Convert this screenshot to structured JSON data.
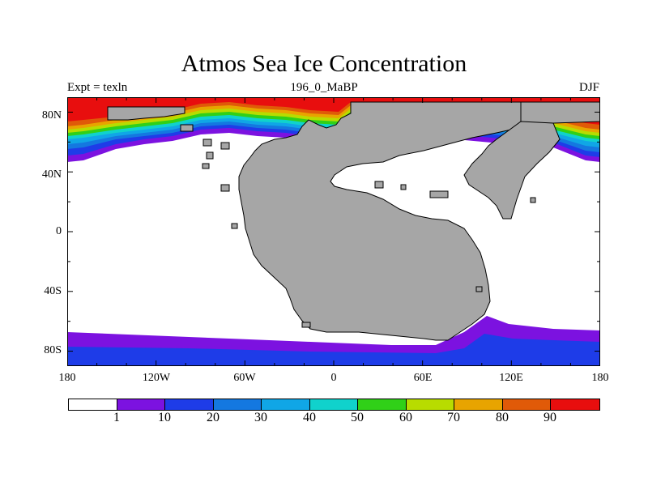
{
  "title": "Atmos Sea Ice Concentration",
  "subtitle_left": "Expt = texln",
  "subtitle_center": "196_0_MaBP",
  "subtitle_right": "DJF",
  "axes": {
    "lat_labels": [
      "80N",
      "40N",
      "0",
      "40S",
      "80S"
    ],
    "lat_values": [
      80,
      40,
      0,
      -40,
      -80
    ],
    "lon_labels": [
      "180",
      "120W",
      "60W",
      "0",
      "60E",
      "120E",
      "180"
    ],
    "lon_values": [
      -180,
      -120,
      -60,
      0,
      60,
      120,
      180
    ],
    "lat_range": [
      -90,
      90
    ],
    "lon_range": [
      -180,
      180
    ]
  },
  "colorbar": {
    "colors": [
      "#ffffff",
      "#7c12e0",
      "#1e3ce8",
      "#1478e0",
      "#10a6e6",
      "#10d2cc",
      "#30d018",
      "#b8dc00",
      "#e8a400",
      "#e05a08",
      "#e80e0e"
    ],
    "labels": [
      "1",
      "10",
      "20",
      "30",
      "40",
      "50",
      "60",
      "70",
      "80",
      "90"
    ]
  },
  "legend": {
    "land_color": "#a6a6a6",
    "ocean_no_ice_color": "#ffffff"
  }
}
